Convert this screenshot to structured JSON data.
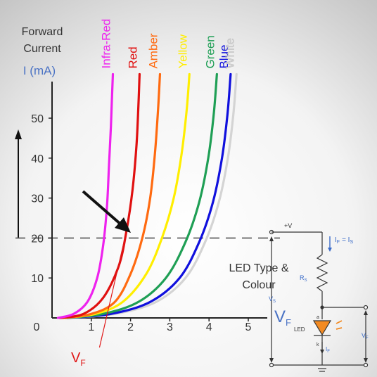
{
  "chart_data": {
    "type": "line",
    "ylabel_line1": "Forward",
    "ylabel_line2": "Current",
    "ylabel_unit": "I (mA)",
    "xlabel": "V",
    "xlabel_sub": "F",
    "xlim": [
      0,
      5.5
    ],
    "ylim": [
      0,
      62
    ],
    "x_ticks": [
      "0",
      "1",
      "2",
      "3",
      "4",
      "5"
    ],
    "y_ticks": [
      "10",
      "20",
      "30",
      "40",
      "50"
    ],
    "reference_current": 20,
    "marker_label": "V",
    "marker_label_sub": "F",
    "marker_x": 0.85,
    "caption_line1": "LED Type &",
    "caption_line2": "Colour",
    "series": [
      {
        "name": "Infra-Red",
        "color": "#ee22ee",
        "x": [
          0.15,
          0.55,
          0.9,
          1.15,
          1.3,
          1.4,
          1.45,
          1.5,
          1.53,
          1.55
        ],
        "y": [
          0,
          1,
          4,
          10,
          18,
          28,
          38,
          48,
          56,
          61
        ]
      },
      {
        "name": "Red",
        "color": "#e01010",
        "x": [
          0.2,
          0.8,
          1.3,
          1.7,
          1.9,
          2.05,
          2.15,
          2.2,
          2.23
        ],
        "y": [
          0,
          1,
          5,
          13,
          22,
          32,
          43,
          53,
          61
        ]
      },
      {
        "name": "Amber",
        "color": "#ff6a10",
        "x": [
          0.25,
          1.0,
          1.6,
          2.0,
          2.3,
          2.5,
          2.62,
          2.7,
          2.75
        ],
        "y": [
          0,
          1,
          4,
          11,
          20,
          30,
          41,
          52,
          61
        ]
      },
      {
        "name": "Yellow",
        "color": "#ffee00",
        "x": [
          0.3,
          1.1,
          1.8,
          2.4,
          2.8,
          3.1,
          3.3,
          3.43,
          3.5
        ],
        "y": [
          0,
          1,
          4,
          11,
          20,
          30,
          41,
          52,
          61
        ]
      },
      {
        "name": "Green",
        "color": "#1f9f55",
        "x": [
          0.35,
          1.3,
          2.2,
          2.9,
          3.4,
          3.75,
          3.98,
          4.12,
          4.2
        ],
        "y": [
          0,
          1,
          4,
          10,
          19,
          29,
          40,
          51,
          61
        ]
      },
      {
        "name": "Blue",
        "color": "#1010dd",
        "x": [
          0.4,
          1.5,
          2.5,
          3.25,
          3.75,
          4.1,
          4.33,
          4.47,
          4.55
        ],
        "y": [
          0,
          1,
          4,
          10,
          19,
          29,
          40,
          51,
          61
        ]
      },
      {
        "name": "White",
        "color": "#d4d4d4",
        "x": [
          0.45,
          1.6,
          2.65,
          3.4,
          3.9,
          4.25,
          4.48,
          4.62,
          4.7
        ],
        "y": [
          0,
          1,
          4,
          10,
          19,
          29,
          40,
          51,
          61
        ]
      }
    ]
  },
  "circuit": {
    "supply": "+V",
    "current": "I",
    "current_sub": "F",
    "current_eq": "= I",
    "current_eq_sub": "S",
    "resistor": "R",
    "resistor_sub": "S",
    "vs": "V",
    "vs_sub": "S",
    "vf": "V",
    "vf_sub": "F",
    "led": "LED",
    "anode": "a",
    "cathode": "k",
    "led_current": "I",
    "led_current_sub": "F"
  },
  "colors": {
    "axis": "#222222",
    "dash": "#555555",
    "label_blue": "#4a72c4",
    "label_red": "#e01818",
    "arrow": "#111111",
    "circuit": "#333333",
    "circuit_blue": "#3a6bc8",
    "led_fill": "#f28a22"
  }
}
